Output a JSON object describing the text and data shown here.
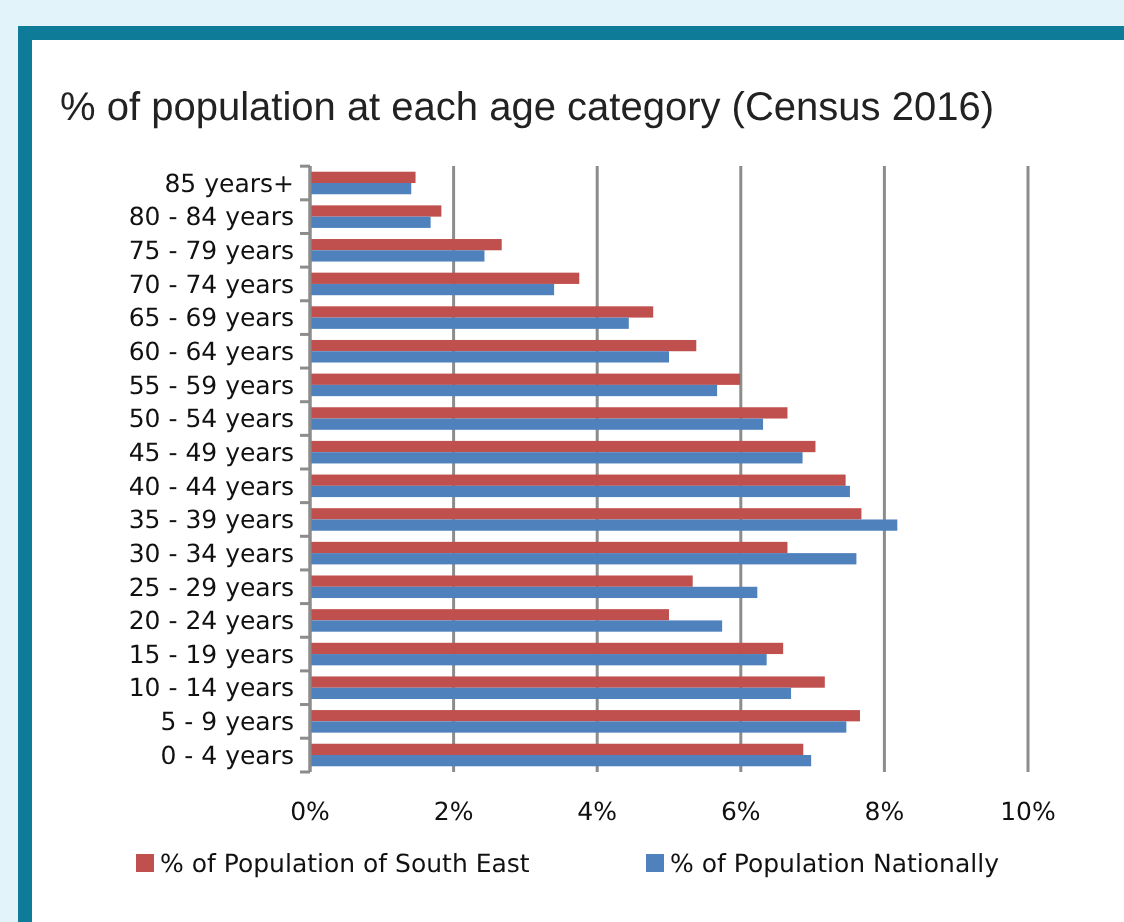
{
  "chart_data": {
    "type": "bar",
    "orientation": "horizontal",
    "title": "% of population at each age category (Census 2016)",
    "categories": [
      "85 years+",
      "80 - 84 years",
      "75 - 79 years",
      "70 - 74 years",
      "65 - 69 years",
      "60 - 64 years",
      "55 - 59 years",
      "50 - 54 years",
      "45 - 49 years",
      "40 - 44 years",
      "35 - 39 years",
      "30 - 34 years",
      "25 - 29 years",
      "20 - 24 years",
      "15 - 19 years",
      "10 - 14 years",
      "5 - 9 years",
      "0 - 4 years"
    ],
    "series": [
      {
        "name": "% of Population of South East",
        "color": "#c0504d",
        "values": [
          1.47,
          1.83,
          2.67,
          3.75,
          4.78,
          5.38,
          5.99,
          6.65,
          7.04,
          7.46,
          7.68,
          6.65,
          5.33,
          5.0,
          6.59,
          7.17,
          7.66,
          6.87
        ]
      },
      {
        "name": "% of Population Nationally",
        "color": "#4f81bd",
        "values": [
          1.41,
          1.68,
          2.43,
          3.4,
          4.44,
          5.0,
          5.67,
          6.31,
          6.86,
          7.52,
          8.18,
          7.61,
          6.23,
          5.74,
          6.36,
          6.7,
          7.47,
          6.98
        ]
      }
    ],
    "xlim": [
      0,
      10
    ],
    "xticks": [
      {
        "value": 0,
        "label": "0%"
      },
      {
        "value": 2,
        "label": "2%"
      },
      {
        "value": 4,
        "label": "4%"
      },
      {
        "value": 6,
        "label": "6%"
      },
      {
        "value": 8,
        "label": "8%"
      },
      {
        "value": 10,
        "label": "10%"
      }
    ],
    "grid": "x",
    "legend": "bottom"
  }
}
